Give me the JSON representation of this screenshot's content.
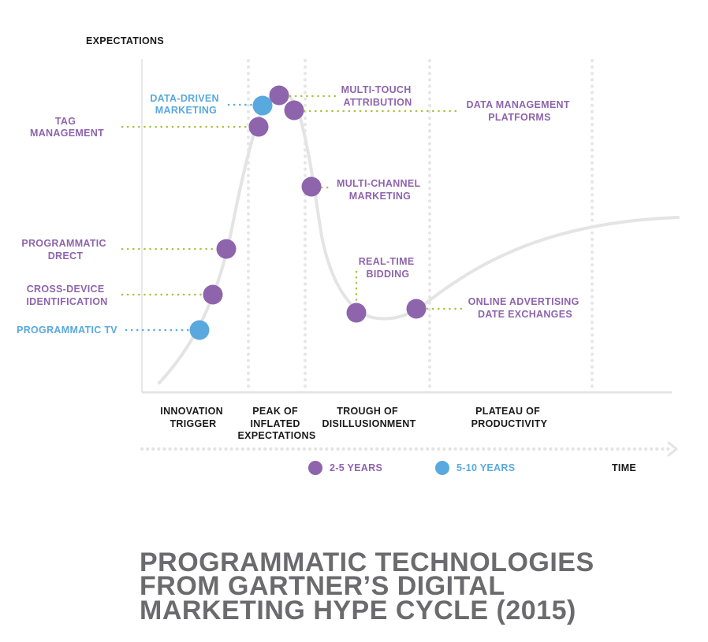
{
  "axes": {
    "y_label": "EXPECTATIONS",
    "x_label": "TIME"
  },
  "phases": [
    {
      "line1": "INNOVATION",
      "line2": "TRIGGER",
      "line3": ""
    },
    {
      "line1": "PEAK OF",
      "line2": "INFLATED",
      "line3": "EXPECTATIONS"
    },
    {
      "line1": "TROUGH OF",
      "line2": "DISILLUSIONMENT",
      "line3": ""
    },
    {
      "line1": "PLATEAU OF",
      "line2": "PRODUCTIVITY",
      "line3": ""
    }
  ],
  "technologies": [
    {
      "line1": "DATA-DRIVEN",
      "line2": "MARKETING",
      "horizon": "5-10 YEARS",
      "color": "#5aa9de"
    },
    {
      "line1": "TAG",
      "line2": "MANAGEMENT",
      "horizon": "2-5 YEARS",
      "color": "#8e64ad"
    },
    {
      "line1": "MULTI-TOUCH",
      "line2": "ATTRIBUTION",
      "horizon": "2-5 YEARS",
      "color": "#8e64ad"
    },
    {
      "line1": "DATA MANAGEMENT",
      "line2": "PLATFORMS",
      "horizon": "2-5 YEARS",
      "color": "#8e64ad"
    },
    {
      "line1": "MULTI-CHANNEL",
      "line2": "MARKETING",
      "horizon": "2-5 YEARS",
      "color": "#8e64ad"
    },
    {
      "line1": "PROGRAMMATIC",
      "line2": "DRECT",
      "horizon": "2-5 YEARS",
      "color": "#8e64ad"
    },
    {
      "line1": "CROSS-DEVICE",
      "line2": "IDENTIFICATION",
      "horizon": "2-5 YEARS",
      "color": "#8e64ad"
    },
    {
      "line1": "PROGRAMMATIC TV",
      "line2": "",
      "horizon": "5-10 YEARS",
      "color": "#5aa9de"
    },
    {
      "line1": "REAL-TIME",
      "line2": "BIDDING",
      "horizon": "2-5 YEARS",
      "color": "#8e64ad"
    },
    {
      "line1": "ONLINE ADVERTISING",
      "line2": "DATE EXCHANGES",
      "horizon": "2-5 YEARS",
      "color": "#8e64ad"
    }
  ],
  "legend": [
    {
      "label": "2-5 YEARS",
      "color": "#8e64ad"
    },
    {
      "label": "5-10 YEARS",
      "color": "#5aa9de"
    }
  ],
  "title": {
    "line1": "PROGRAMMATIC TECHNOLOGIES",
    "line2": "FROM GARTNER’S DIGITAL",
    "line3": "MARKETING HYPE CYCLE (2015)"
  },
  "colors": {
    "two_to_five": "#8e64ad",
    "five_to_ten": "#5aa9de",
    "leader": "#a8c23c",
    "curve": "#e4e4e4",
    "title": "#6b6b6d"
  }
}
